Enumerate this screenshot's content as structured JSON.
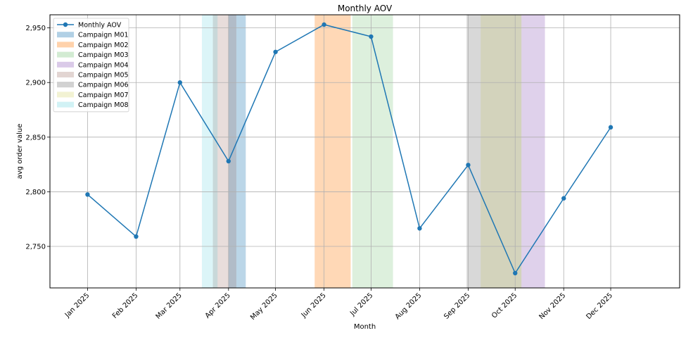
{
  "chart_data": {
    "type": "line",
    "title": "Monthly AOV",
    "xlabel": "Month",
    "ylabel": "avg order value",
    "categories": [
      "Jan 2025",
      "Feb 2025",
      "Mar 2025",
      "Apr 2025",
      "May 2025",
      "Jun 2025",
      "Jul 2025",
      "Aug 2025",
      "Sep 2025",
      "Oct 2025",
      "Nov 2025",
      "Dec 2025"
    ],
    "x_dates": [
      "2025-01-01",
      "2025-02-01",
      "2025-03-01",
      "2025-04-01",
      "2025-05-01",
      "2025-06-01",
      "2025-07-01",
      "2025-08-01",
      "2025-09-01",
      "2025-10-01",
      "2025-11-01",
      "2025-12-01"
    ],
    "series": [
      {
        "name": "Monthly AOV",
        "color": "#1f77b4",
        "values": [
          2797.5,
          2759,
          2900,
          2828,
          2928,
          2953,
          2942,
          2766.5,
          2824.5,
          2725.5,
          2794,
          2859
        ]
      }
    ],
    "ylim": [
      2712,
      2962
    ],
    "yticks": [
      2750,
      2800,
      2850,
      2900,
      2950
    ],
    "ytick_labels": [
      "2,750",
      "2,800",
      "2,850",
      "2,900",
      "2,950"
    ],
    "xlim": [
      "2024-12-08",
      "2026-01-14"
    ],
    "grid": true,
    "legend_position": "top-left",
    "campaigns": [
      {
        "name": "Campaign M01",
        "start": "2025-04-01",
        "end": "2025-04-12",
        "color": "#1f77b4",
        "alpha": 0.3
      },
      {
        "name": "Campaign M02",
        "start": "2025-05-26",
        "end": "2025-06-18",
        "color": "#ff7f0e",
        "alpha": 0.3
      },
      {
        "name": "Campaign M03",
        "start": "2025-06-19",
        "end": "2025-07-15",
        "color": "#2ca02c",
        "alpha": 0.16
      },
      {
        "name": "Campaign M04",
        "start": "2025-10-05",
        "end": "2025-10-20",
        "color": "#9467bd",
        "alpha": 0.3
      },
      {
        "name": "Campaign M05",
        "start": "2025-03-22",
        "end": "2025-04-06",
        "color": "#8c564b",
        "alpha": 0.2
      },
      {
        "name": "Campaign M06",
        "start": "2025-08-31",
        "end": "2025-10-05",
        "color": "#7f7f7f",
        "alpha": 0.3
      },
      {
        "name": "Campaign M07",
        "start": "2025-09-09",
        "end": "2025-10-05",
        "color": "#bcbd22",
        "alpha": 0.15
      },
      {
        "name": "Campaign M08",
        "start": "2025-03-15",
        "end": "2025-03-25",
        "color": "#17becf",
        "alpha": 0.15
      }
    ]
  }
}
